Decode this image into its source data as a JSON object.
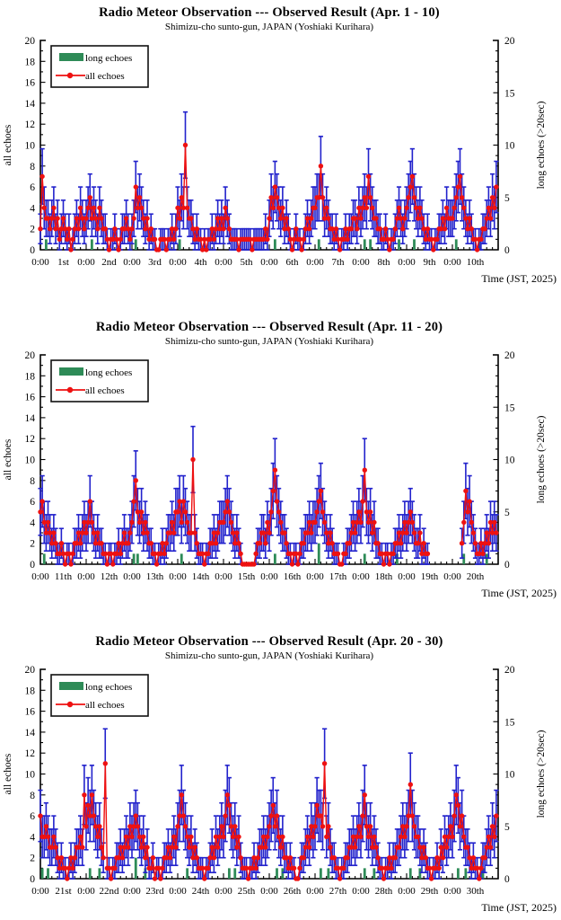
{
  "page": {
    "background": "#ffffff"
  },
  "colors": {
    "all_echoes": "#ee1111",
    "error_bar": "#2222cc",
    "long_echoes": "#2e8b57",
    "axis": "#000000",
    "legend_border": "#111111"
  },
  "charts": [
    {
      "title": "Radio Meteor Observation --- Observed Result (Apr. 1 - 10)",
      "subtitle": "Shimizu-cho sunto-gun, JAPAN (Yoshiaki Kurihara)",
      "legend": {
        "long_label": "long echoes",
        "all_label": "all echoes"
      },
      "y_left": {
        "label": "all echoes",
        "min": 0,
        "max": 20,
        "major": 2,
        "minor": 1
      },
      "y_right": {
        "label": "long echoes (>20sec)",
        "min": 0,
        "max": 20,
        "major": 5,
        "minor": 1
      },
      "x": {
        "tick_label": "0:00",
        "days": [
          "1st",
          "2nd",
          "3rd",
          "4th",
          "5th",
          "6th",
          "7th",
          "8th",
          "9th",
          "10th"
        ],
        "hours_per_day": 24,
        "minor_tick_hours": 3,
        "time_label": "Time (JST, 2025)"
      },
      "chart_data": {
        "type": "line",
        "x_unit": "hour (JST), Apr. 1 - 10, 2025",
        "error_model": "poisson sqrt(n) error bars",
        "grid": false,
        "legend_position": "top-left inside",
        "all_echoes": [
          2,
          7,
          4,
          3,
          3,
          2,
          3,
          4,
          2,
          3,
          1,
          2,
          3,
          2,
          1,
          2,
          0,
          1,
          2,
          3,
          2,
          4,
          3,
          2,
          3,
          4,
          5,
          3,
          4,
          3,
          2,
          4,
          3,
          2,
          2,
          1,
          0,
          1,
          1,
          2,
          1,
          0,
          1,
          2,
          2,
          3,
          2,
          1,
          2,
          3,
          6,
          4,
          5,
          4,
          3,
          2,
          3,
          1,
          2,
          1,
          1,
          0,
          0,
          1,
          1,
          1,
          0,
          1,
          1,
          2,
          1,
          2,
          4,
          3,
          5,
          4,
          10,
          4,
          3,
          3,
          2,
          1,
          2,
          1,
          1,
          0,
          1,
          0,
          1,
          1,
          2,
          1,
          2,
          3,
          2,
          3,
          2,
          4,
          3,
          2,
          1,
          1,
          1,
          1,
          0,
          1,
          1,
          1,
          1,
          1,
          1,
          0,
          1,
          1,
          1,
          1,
          1,
          1,
          2,
          1,
          3,
          5,
          4,
          6,
          5,
          4,
          3,
          4,
          2,
          3,
          2,
          1,
          0,
          1,
          2,
          1,
          1,
          0,
          1,
          2,
          3,
          2,
          3,
          4,
          4,
          5,
          5,
          8,
          5,
          3,
          4,
          3,
          2,
          2,
          1,
          2,
          1,
          0,
          1,
          1,
          2,
          1,
          2,
          2,
          3,
          3,
          2,
          4,
          3,
          4,
          5,
          4,
          7,
          5,
          4,
          3,
          3,
          2,
          2,
          1,
          1,
          2,
          1,
          0,
          1,
          1,
          2,
          3,
          4,
          3,
          2,
          3,
          4,
          5,
          6,
          7,
          5,
          4,
          3,
          4,
          3,
          2,
          1,
          2,
          1,
          1,
          0,
          1,
          1,
          2,
          2,
          3,
          2,
          4,
          3,
          3,
          3,
          4,
          5,
          6,
          7,
          5,
          4,
          3,
          2,
          3,
          2,
          1,
          1,
          0,
          1,
          1,
          2,
          2,
          3,
          4,
          3,
          5,
          4,
          6
        ],
        "long_echoes_sparse": [
          [
            3,
            1
          ],
          [
            27,
            1
          ],
          [
            50,
            1
          ],
          [
            73,
            1
          ],
          [
            123,
            1
          ],
          [
            146,
            1
          ],
          [
            170,
            1
          ],
          [
            173,
            1
          ],
          [
            188,
            1
          ],
          [
            196,
            1
          ],
          [
            218,
            1
          ],
          [
            230,
            1
          ]
        ]
      }
    },
    {
      "title": "Radio Meteor Observation --- Observed Result (Apr. 11 - 20)",
      "subtitle": "Shimizu-cho sunto-gun, JAPAN (Yoshiaki Kurihara)",
      "legend": {
        "long_label": "long echoes",
        "all_label": "all echoes"
      },
      "y_left": {
        "label": "all echoes",
        "min": 0,
        "max": 20,
        "major": 2,
        "minor": 1
      },
      "y_right": {
        "label": "long echoes (>20sec)",
        "min": 0,
        "max": 20,
        "major": 5,
        "minor": 1
      },
      "x": {
        "tick_label": "0:00",
        "days": [
          "11th",
          "12th",
          "13th",
          "14th",
          "15th",
          "16th",
          "17th",
          "18th",
          "19th",
          "20th"
        ],
        "hours_per_day": 24,
        "minor_tick_hours": 3,
        "time_label": "Time (JST, 2025)"
      },
      "chart_data": {
        "type": "line",
        "x_unit": "hour (JST), Apr. 11 - 20, 2025",
        "error_model": "poisson sqrt(n) error bars",
        "grid": false,
        "legend_position": "top-left inside",
        "data_gap": "no data from Apr. 19 ~12:00 to Apr. 20 ~05:00",
        "all_echoes": [
          5,
          6,
          4,
          3,
          4,
          3,
          2,
          3,
          2,
          1,
          1,
          2,
          1,
          0,
          1,
          1,
          0,
          1,
          2,
          2,
          3,
          2,
          3,
          4,
          3,
          4,
          6,
          4,
          3,
          2,
          3,
          2,
          2,
          1,
          1,
          0,
          1,
          1,
          0,
          1,
          1,
          2,
          1,
          2,
          3,
          2,
          2,
          3,
          4,
          6,
          8,
          5,
          4,
          5,
          3,
          4,
          3,
          2,
          2,
          1,
          1,
          0,
          1,
          1,
          2,
          1,
          2,
          3,
          3,
          4,
          3,
          5,
          5,
          6,
          4,
          6,
          5,
          4,
          3,
          3,
          10,
          3,
          2,
          1,
          1,
          1,
          0,
          1,
          1,
          2,
          2,
          3,
          2,
          3,
          4,
          4,
          4,
          5,
          6,
          5,
          4,
          3,
          2,
          3,
          2,
          1,
          0,
          0,
          0,
          0,
          0,
          0,
          0,
          1,
          2,
          2,
          3,
          3,
          2,
          4,
          3,
          5,
          7,
          9,
          6,
          5,
          4,
          3,
          3,
          2,
          1,
          1,
          0,
          1,
          1,
          0,
          1,
          2,
          2,
          3,
          3,
          4,
          3,
          4,
          4,
          5,
          6,
          7,
          5,
          4,
          3,
          2,
          3,
          2,
          1,
          1,
          1,
          0,
          0,
          1,
          1,
          2,
          2,
          3,
          4,
          3,
          4,
          5,
          4,
          6,
          9,
          5,
          4,
          5,
          3,
          4,
          2,
          2,
          1,
          1,
          0,
          1,
          1,
          0,
          1,
          1,
          2,
          2,
          3,
          2,
          3,
          4,
          3,
          4,
          5,
          4,
          3,
          2,
          2,
          3,
          1,
          2,
          1,
          1,
          null,
          null,
          null,
          null,
          null,
          null,
          null,
          null,
          null,
          null,
          null,
          null,
          null,
          null,
          null,
          null,
          null,
          2,
          4,
          7,
          5,
          6,
          4,
          3,
          2,
          1,
          1,
          2,
          1,
          2,
          3,
          2,
          4,
          3,
          4,
          3
        ],
        "long_echoes_sparse": [
          [
            2,
            1
          ],
          [
            49,
            1
          ],
          [
            51,
            1
          ],
          [
            74,
            1
          ],
          [
            123,
            1
          ],
          [
            146,
            2
          ],
          [
            170,
            1
          ],
          [
            187,
            1
          ],
          [
            222,
            1
          ],
          [
            234,
            1
          ]
        ]
      }
    },
    {
      "title": "Radio Meteor Observation --- Observed Result (Apr. 20 - 30)",
      "subtitle": "Shimizu-cho sunto-gun, JAPAN (Yoshiaki Kurihara)",
      "legend": {
        "long_label": "long echoes",
        "all_label": "all echoes"
      },
      "y_left": {
        "label": "all echoes",
        "min": 0,
        "max": 20,
        "major": 2,
        "minor": 1
      },
      "y_right": {
        "label": "long echoes (>20sec)",
        "min": 0,
        "max": 20,
        "major": 5,
        "minor": 1
      },
      "x": {
        "tick_label": "0:00",
        "days": [
          "21st",
          "22nd",
          "23rd",
          "24th",
          "25th",
          "26th",
          "27th",
          "28th",
          "29th",
          "30th"
        ],
        "hours_per_day": 24,
        "minor_tick_hours": 3,
        "time_label": "Time (JST, 2025)"
      },
      "chart_data": {
        "type": "line",
        "x_unit": "hour (JST), Apr. 20 - 30, 2025",
        "error_model": "poisson sqrt(n) error bars",
        "grid": false,
        "legend_position": "top-left inside",
        "all_echoes": [
          6,
          4,
          4,
          5,
          4,
          3,
          3,
          4,
          3,
          2,
          1,
          2,
          1,
          1,
          0,
          1,
          2,
          1,
          2,
          3,
          3,
          4,
          3,
          8,
          5,
          7,
          6,
          8,
          6,
          5,
          4,
          5,
          3,
          2,
          11,
          1,
          1,
          0,
          1,
          1,
          2,
          2,
          3,
          2,
          3,
          4,
          3,
          5,
          4,
          5,
          6,
          5,
          4,
          3,
          4,
          2,
          3,
          1,
          1,
          2,
          0,
          1,
          1,
          0,
          1,
          2,
          2,
          3,
          2,
          3,
          4,
          3,
          5,
          6,
          8,
          6,
          5,
          4,
          3,
          4,
          2,
          3,
          2,
          1,
          1,
          1,
          0,
          1,
          1,
          2,
          3,
          2,
          4,
          3,
          4,
          5,
          4,
          6,
          8,
          7,
          5,
          4,
          5,
          3,
          4,
          2,
          1,
          1,
          1,
          0,
          1,
          1,
          2,
          1,
          2,
          3,
          3,
          4,
          3,
          4,
          5,
          6,
          7,
          5,
          6,
          4,
          3,
          4,
          2,
          2,
          1,
          2,
          1,
          1,
          0,
          0,
          1,
          2,
          2,
          3,
          4,
          3,
          5,
          4,
          5,
          7,
          6,
          6,
          5,
          11,
          4,
          5,
          3,
          2,
          2,
          1,
          1,
          0,
          1,
          1,
          2,
          2,
          3,
          3,
          4,
          3,
          4,
          5,
          4,
          6,
          8,
          5,
          4,
          5,
          3,
          4,
          3,
          2,
          1,
          1,
          0,
          1,
          1,
          2,
          1,
          2,
          2,
          3,
          3,
          4,
          5,
          4,
          5,
          6,
          9,
          6,
          5,
          4,
          4,
          3,
          2,
          3,
          2,
          1,
          1,
          0,
          1,
          1,
          2,
          1,
          3,
          2,
          4,
          3,
          4,
          5,
          4,
          6,
          8,
          7,
          5,
          6,
          4,
          3,
          3,
          2,
          1,
          2,
          1,
          1,
          0,
          1,
          2,
          2,
          3,
          4,
          3,
          5,
          4,
          6
        ],
        "long_echoes_sparse": [
          [
            1,
            1
          ],
          [
            4,
            1
          ],
          [
            26,
            1
          ],
          [
            31,
            1
          ],
          [
            50,
            2
          ],
          [
            55,
            1
          ],
          [
            77,
            1
          ],
          [
            99,
            1
          ],
          [
            102,
            1
          ],
          [
            124,
            1
          ],
          [
            127,
            1
          ],
          [
            147,
            1
          ],
          [
            151,
            1
          ],
          [
            170,
            1
          ],
          [
            175,
            1
          ],
          [
            194,
            1
          ],
          [
            199,
            1
          ],
          [
            219,
            1
          ],
          [
            223,
            1
          ],
          [
            232,
            1
          ]
        ]
      }
    }
  ]
}
